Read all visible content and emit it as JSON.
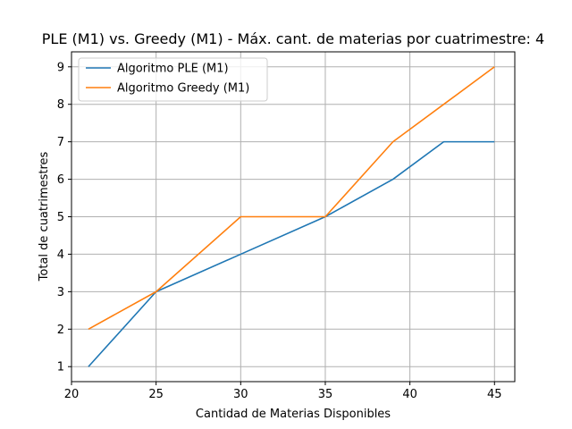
{
  "chart_data": {
    "type": "line",
    "title": "PLE (M1) vs. Greedy (M1) - Máx. cant. de materias por cuatrimestre: 4",
    "xlabel": "Cantidad de Materias Disponibles",
    "ylabel": "Total de cuatrimestres",
    "xlim": [
      20,
      46.2
    ],
    "ylim": [
      0.6,
      9.4
    ],
    "xticks": [
      20,
      25,
      30,
      35,
      40,
      45
    ],
    "yticks": [
      1,
      2,
      3,
      4,
      5,
      6,
      7,
      8,
      9
    ],
    "grid": true,
    "legend_position": "top-left",
    "series": [
      {
        "name": "Algoritmo PLE (M1)",
        "color": "#1f77b4",
        "x": [
          21,
          25,
          30,
          35,
          39,
          42,
          45
        ],
        "y": [
          1,
          3,
          4,
          5,
          6,
          7,
          7
        ]
      },
      {
        "name": "Algoritmo Greedy (M1)",
        "color": "#ff7f0e",
        "x": [
          21,
          25,
          30,
          35,
          39,
          42,
          45
        ],
        "y": [
          2,
          3,
          5,
          5,
          7,
          8,
          9
        ]
      }
    ]
  }
}
